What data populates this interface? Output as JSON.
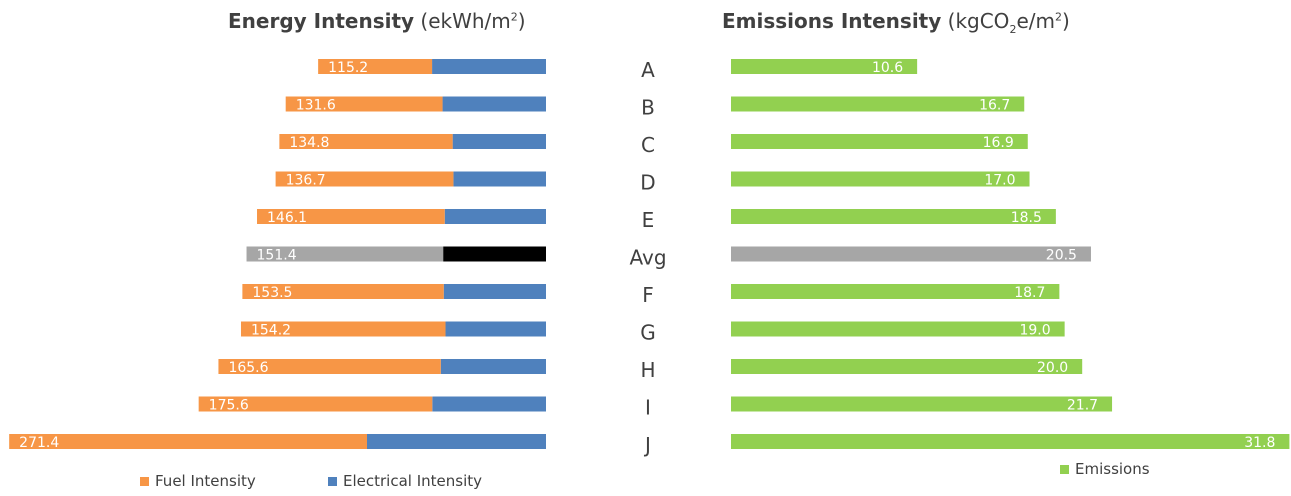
{
  "chart_data": [
    {
      "type": "bar",
      "orientation": "horizontal",
      "stacked": true,
      "title_bold": "Energy Intensity",
      "title_unit": "(ekWh/m",
      "title_unit_sup": "2",
      "title_unit_close": ")",
      "categories": [
        "A",
        "B",
        "C",
        "D",
        "E",
        "Avg",
        "F",
        "G",
        "H",
        "I",
        "J"
      ],
      "totals": [
        115.2,
        131.6,
        134.8,
        136.7,
        146.1,
        151.4,
        153.5,
        154.2,
        165.6,
        175.6,
        271.4
      ],
      "series": [
        {
          "name": "Fuel Intensity",
          "color": "#f79646",
          "values": [
            57.6,
            79.3,
            87.6,
            89.9,
            94.9,
            99.4,
            101.8,
            103.4,
            112.4,
            118.1,
            180.9
          ]
        },
        {
          "name": "Electrical Intensity",
          "color": "#4f81bd",
          "values": [
            57.6,
            52.3,
            47.2,
            46.8,
            51.2,
            52.0,
            51.7,
            50.8,
            53.2,
            57.5,
            90.5
          ]
        }
      ],
      "highlight": {
        "category": "Avg",
        "colors": [
          "#a6a6a6",
          "#000000"
        ]
      },
      "legend_position": "bottom"
    },
    {
      "type": "bar",
      "orientation": "horizontal",
      "title_bold": "Emissions Intensity",
      "title_unit": "(kgCO",
      "title_unit_sub": "2",
      "title_unit_mid": "e/m",
      "title_unit_sup": "2",
      "title_unit_close": ")",
      "categories": [
        "A",
        "B",
        "C",
        "D",
        "E",
        "Avg",
        "F",
        "G",
        "H",
        "I",
        "J"
      ],
      "series": [
        {
          "name": "Emissions",
          "color": "#92d050",
          "values": [
            10.6,
            16.7,
            16.9,
            17.0,
            18.5,
            20.5,
            18.7,
            19.0,
            20.0,
            21.7,
            31.8
          ]
        }
      ],
      "highlight": {
        "category": "Avg",
        "colors": [
          "#a6a6a6"
        ]
      },
      "legend_position": "bottom-center"
    }
  ]
}
